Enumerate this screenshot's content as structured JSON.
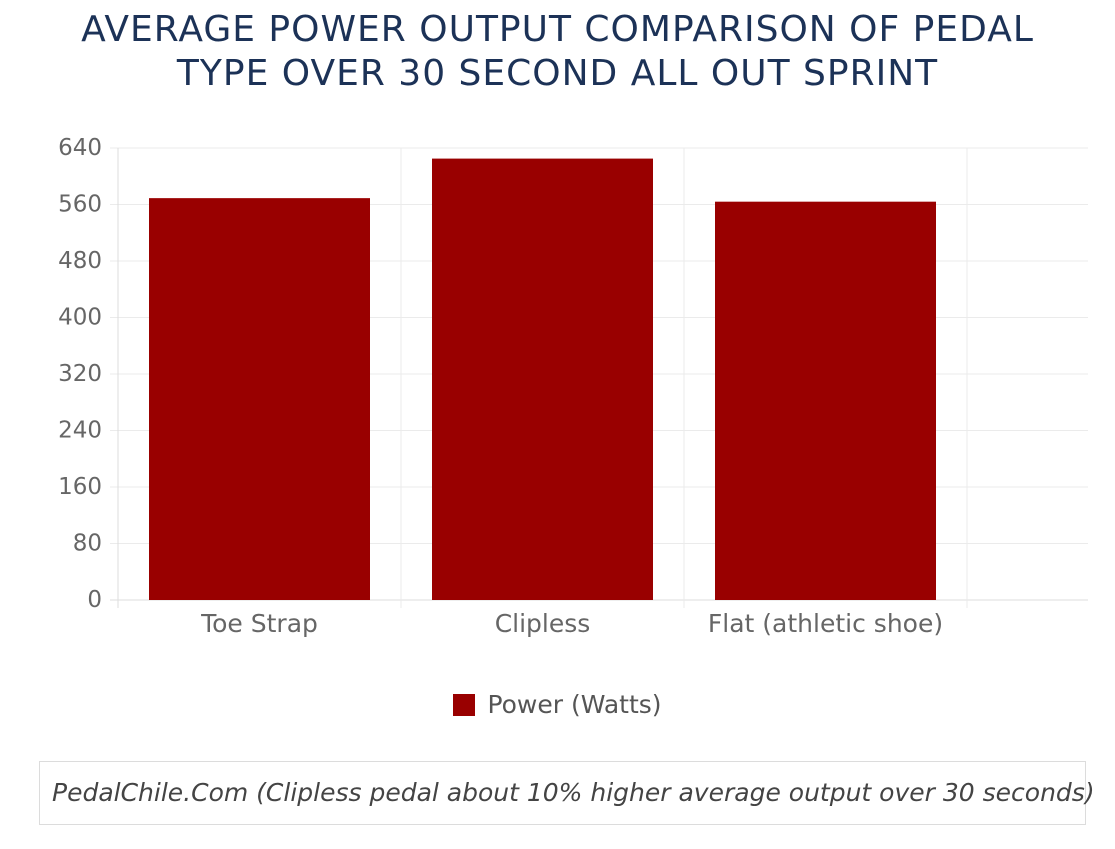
{
  "title_lines": [
    "AVERAGE POWER OUTPUT COMPARISON OF PEDAL",
    "TYPE OVER 30 SECOND ALL OUT SPRINT"
  ],
  "caption": "PedalChile.Com (Clipless pedal about 10% higher average output over 30 seconds)",
  "colors": {
    "bar": "#990000",
    "title": "#1c3257",
    "grid": "#ebebeb",
    "tick": "#666666"
  },
  "chart_data": {
    "type": "bar",
    "categories": [
      "Toe Strap",
      "Clipless",
      "Flat (athletic shoe)"
    ],
    "series": [
      {
        "name": "Power (Watts)",
        "values": [
          569,
          625,
          564
        ]
      }
    ],
    "ylim": [
      0,
      640
    ],
    "yticks": [
      0,
      80,
      160,
      240,
      320,
      400,
      480,
      560,
      640
    ],
    "grid": true,
    "legend": "bottom"
  }
}
